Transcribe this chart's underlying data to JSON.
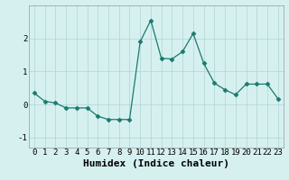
{
  "x": [
    0,
    1,
    2,
    3,
    4,
    5,
    6,
    7,
    8,
    9,
    10,
    11,
    12,
    13,
    14,
    15,
    16,
    17,
    18,
    19,
    20,
    21,
    22,
    23
  ],
  "y": [
    0.35,
    0.1,
    0.05,
    -0.1,
    -0.1,
    -0.1,
    -0.35,
    -0.45,
    -0.45,
    -0.45,
    1.9,
    2.55,
    1.4,
    1.38,
    1.6,
    2.15,
    1.25,
    0.65,
    0.45,
    0.3,
    0.62,
    0.62,
    0.62,
    0.18
  ],
  "xlabel": "Humidex (Indice chaleur)",
  "xlim": [
    -0.5,
    23.5
  ],
  "ylim": [
    -1.3,
    3.0
  ],
  "line_color": "#1a7a6e",
  "marker": "D",
  "marker_size": 2.5,
  "bg_color": "#d6f0f0",
  "grid_color": "#b0d4d4",
  "yticks": [
    -1,
    0,
    1,
    2
  ],
  "xticks": [
    0,
    1,
    2,
    3,
    4,
    5,
    6,
    7,
    8,
    9,
    10,
    11,
    12,
    13,
    14,
    15,
    16,
    17,
    18,
    19,
    20,
    21,
    22,
    23
  ],
  "xlabel_fontsize": 8,
  "tick_fontsize": 6.5
}
